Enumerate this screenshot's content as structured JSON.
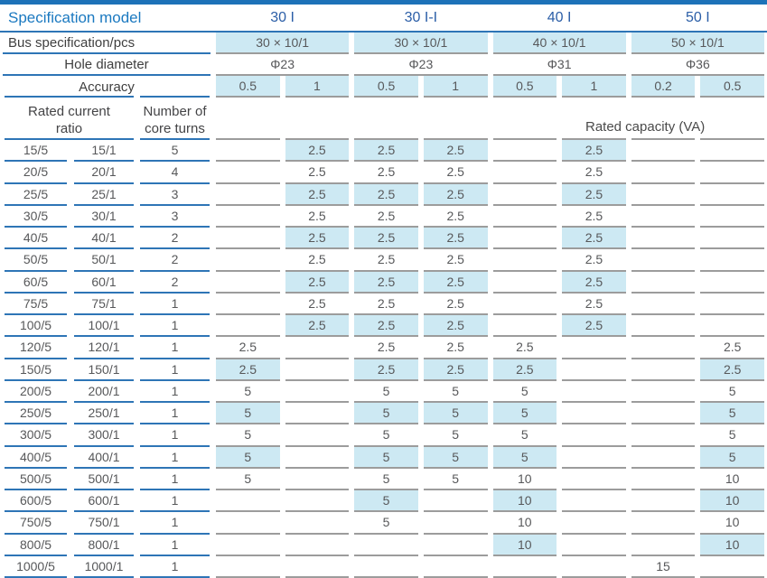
{
  "header": {
    "spec_model_label": "Specification model",
    "models": [
      "30 I",
      "30 I-I",
      "40 I",
      "50 I"
    ],
    "bus_label": "Bus specification/pcs",
    "bus_values": [
      "30 × 10/1",
      "30 × 10/1",
      "40 × 10/1",
      "50 × 10/1"
    ],
    "hole_label": "Hole diameter",
    "hole_values": [
      "Φ23",
      "Φ23",
      "Φ31",
      "Φ36"
    ],
    "accuracy_label": "Accuracy",
    "accuracy_values": [
      "0.5",
      "1",
      "0.5",
      "1",
      "0.5",
      "1",
      "0.2",
      "0.5"
    ],
    "ratio_header_line1": "Rated current",
    "ratio_header_line2": "ratio",
    "turns_header_line1": "Number of",
    "turns_header_line2": "core turns",
    "capacity_label": "Rated capacity (VA)"
  },
  "colors": {
    "accent_blue_line": "#2e75b6",
    "top_bar_blue": "#1d72b8",
    "title_blue": "#1b79c0",
    "model_blue": "#2b5ea7",
    "highlight_bg": "#cde9f3",
    "gray_line": "#9c9c9c",
    "text_gray": "#57585a"
  },
  "rows": [
    {
      "r5": "15/5",
      "r1": "15/1",
      "turns": "5",
      "hl": true,
      "vals": [
        "",
        "2.5",
        "2.5",
        "2.5",
        "",
        "2.5",
        "",
        ""
      ]
    },
    {
      "r5": "20/5",
      "r1": "20/1",
      "turns": "4",
      "hl": false,
      "vals": [
        "",
        "2.5",
        "2.5",
        "2.5",
        "",
        "2.5",
        "",
        ""
      ]
    },
    {
      "r5": "25/5",
      "r1": "25/1",
      "turns": "3",
      "hl": true,
      "vals": [
        "",
        "2.5",
        "2.5",
        "2.5",
        "",
        "2.5",
        "",
        ""
      ]
    },
    {
      "r5": "30/5",
      "r1": "30/1",
      "turns": "3",
      "hl": false,
      "vals": [
        "",
        "2.5",
        "2.5",
        "2.5",
        "",
        "2.5",
        "",
        ""
      ]
    },
    {
      "r5": "40/5",
      "r1": "40/1",
      "turns": "2",
      "hl": true,
      "vals": [
        "",
        "2.5",
        "2.5",
        "2.5",
        "",
        "2.5",
        "",
        ""
      ]
    },
    {
      "r5": "50/5",
      "r1": "50/1",
      "turns": "2",
      "hl": false,
      "vals": [
        "",
        "2.5",
        "2.5",
        "2.5",
        "",
        "2.5",
        "",
        ""
      ]
    },
    {
      "r5": "60/5",
      "r1": "60/1",
      "turns": "2",
      "hl": true,
      "vals": [
        "",
        "2.5",
        "2.5",
        "2.5",
        "",
        "2.5",
        "",
        ""
      ]
    },
    {
      "r5": "75/5",
      "r1": "75/1",
      "turns": "1",
      "hl": false,
      "vals": [
        "",
        "2.5",
        "2.5",
        "2.5",
        "",
        "2.5",
        "",
        ""
      ]
    },
    {
      "r5": "100/5",
      "r1": "100/1",
      "turns": "1",
      "hl": true,
      "vals": [
        "",
        "2.5",
        "2.5",
        "2.5",
        "",
        "2.5",
        "",
        ""
      ]
    },
    {
      "r5": "120/5",
      "r1": "120/1",
      "turns": "1",
      "hl": false,
      "vals": [
        "2.5",
        "",
        "2.5",
        "2.5",
        "2.5",
        "",
        "",
        "2.5"
      ]
    },
    {
      "r5": "150/5",
      "r1": "150/1",
      "turns": "1",
      "hl": true,
      "vals": [
        "2.5",
        "",
        "2.5",
        "2.5",
        "2.5",
        "",
        "",
        "2.5"
      ]
    },
    {
      "r5": "200/5",
      "r1": "200/1",
      "turns": "1",
      "hl": false,
      "vals": [
        "5",
        "",
        "5",
        "5",
        "5",
        "",
        "",
        "5"
      ]
    },
    {
      "r5": "250/5",
      "r1": "250/1",
      "turns": "1",
      "hl": true,
      "vals": [
        "5",
        "",
        "5",
        "5",
        "5",
        "",
        "",
        "5"
      ]
    },
    {
      "r5": "300/5",
      "r1": "300/1",
      "turns": "1",
      "hl": false,
      "vals": [
        "5",
        "",
        "5",
        "5",
        "5",
        "",
        "",
        "5"
      ]
    },
    {
      "r5": "400/5",
      "r1": "400/1",
      "turns": "1",
      "hl": true,
      "vals": [
        "5",
        "",
        "5",
        "5",
        "5",
        "",
        "",
        "5"
      ]
    },
    {
      "r5": "500/5",
      "r1": "500/1",
      "turns": "1",
      "hl": false,
      "vals": [
        "5",
        "",
        "5",
        "5",
        "10",
        "",
        "",
        "10"
      ]
    },
    {
      "r5": "600/5",
      "r1": "600/1",
      "turns": "1",
      "hl": true,
      "vals": [
        "",
        "",
        "5",
        "",
        "10",
        "",
        "",
        "10"
      ]
    },
    {
      "r5": "750/5",
      "r1": "750/1",
      "turns": "1",
      "hl": false,
      "vals": [
        "",
        "",
        "5",
        "",
        "10",
        "",
        "",
        "10"
      ]
    },
    {
      "r5": "800/5",
      "r1": "800/1",
      "turns": "1",
      "hl": true,
      "vals": [
        "",
        "",
        "",
        "",
        "10",
        "",
        "",
        "10"
      ]
    },
    {
      "r5": "1000/5",
      "r1": "1000/1",
      "turns": "1",
      "hl": false,
      "vals": [
        "",
        "",
        "",
        "",
        "",
        "",
        "15",
        ""
      ]
    }
  ]
}
